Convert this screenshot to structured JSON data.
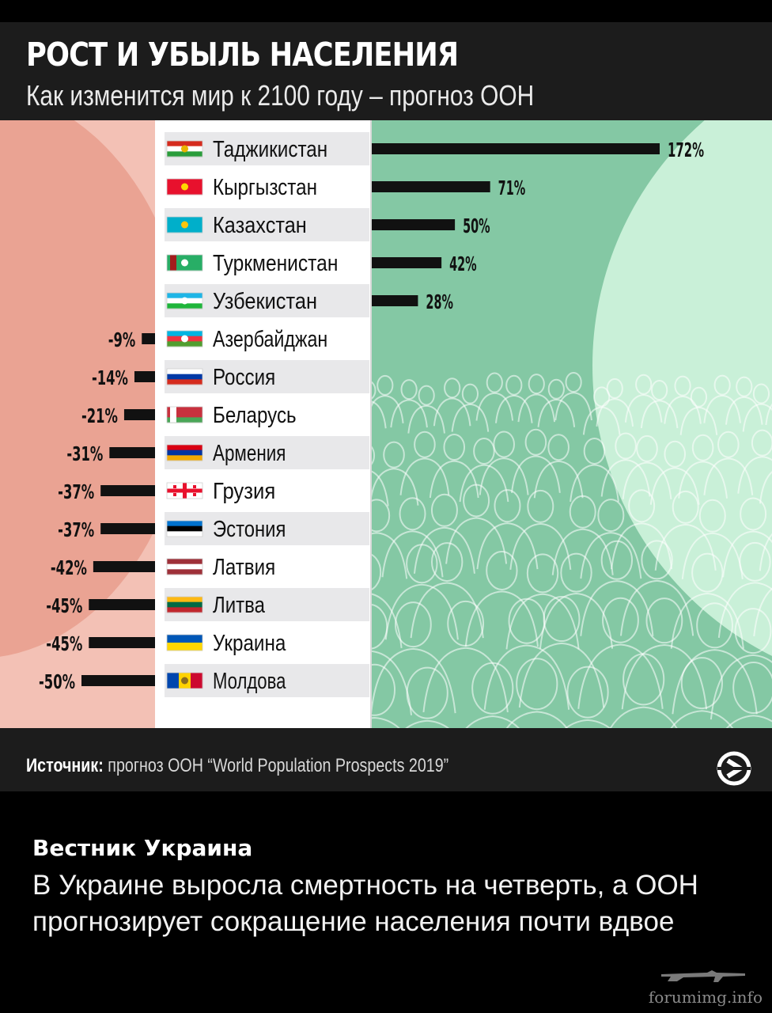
{
  "title": "РОСТ И УБЫЛЬ НАСЕЛЕНИЯ",
  "subtitle": "Как изменится мир к 2100 году – прогноз ООН",
  "source": {
    "label": "Источник:",
    "text": " прогноз ООН “World Population Prospects 2019”"
  },
  "brand_logo_icon": "chevron-circle-logo-icon",
  "news": {
    "source_name": "Вестник Украина",
    "headline": "В Украине выросла смертность на четверть, а ООН прогнозирует сокращение населения почти вдвое"
  },
  "watermark": "forumimg.info",
  "colors": {
    "bar": "#111111",
    "row_odd": "#e8e8ea",
    "row_even": "#ffffff",
    "growth_bg": "#c9f0d8",
    "decline_bg": "#f3c1b5"
  },
  "chart_data": {
    "type": "bar",
    "orientation": "horizontal-diverging",
    "unit": "%",
    "series": [
      {
        "values": [
          172,
          71,
          50,
          42,
          28,
          -9,
          -14,
          -21,
          -31,
          -37,
          -37,
          -42,
          -45,
          -45,
          -50
        ]
      }
    ],
    "categories": [
      "Таджикистан",
      "Кыргызстан",
      "Казахстан",
      "Туркменистан",
      "Узбекистан",
      "Азербайджан",
      "Россия",
      "Беларусь",
      "Армения",
      "Грузия",
      "Эстония",
      "Латвия",
      "Литва",
      "Украина",
      "Молдова"
    ],
    "labels": [
      "172%",
      "71%",
      "50%",
      "42%",
      "28%",
      "-9%",
      "-14%",
      "-21%",
      "-31%",
      "-37%",
      "-37%",
      "-42%",
      "-45%",
      "-45%",
      "-50%"
    ],
    "flags": [
      {
        "stripes": [
          "#d52b1e",
          "#ffffff",
          "#2a9d3b"
        ],
        "emblem": "#e8b400"
      },
      {
        "stripes": [
          "#e8112d"
        ],
        "emblem": "#ffd700"
      },
      {
        "stripes": [
          "#00afca"
        ],
        "emblem": "#fec50c"
      },
      {
        "stripes": [
          "#28ae66"
        ],
        "emblem": "#ffffff",
        "hoist": "#a31d1d"
      },
      {
        "stripes": [
          "#1eb5e6",
          "#ffffff",
          "#1eb53a"
        ],
        "emblem": "#ffffff"
      },
      {
        "stripes": [
          "#00b5e2",
          "#ef3340",
          "#509e2f"
        ],
        "emblem": "#ffffff"
      },
      {
        "stripes": [
          "#ffffff",
          "#0039a6",
          "#d52b1e"
        ]
      },
      {
        "stripes": [
          "#c8313e",
          "#c8313e",
          "#4aa657"
        ],
        "hoist": "#ffffff"
      },
      {
        "stripes": [
          "#d90012",
          "#0033a0",
          "#f2a800"
        ]
      },
      {
        "stripes": [
          "#ffffff"
        ],
        "cross": "#e8112d"
      },
      {
        "stripes": [
          "#0072ce",
          "#000000",
          "#ffffff"
        ]
      },
      {
        "stripes": [
          "#9e3039",
          "#ffffff",
          "#9e3039"
        ]
      },
      {
        "stripes": [
          "#fdb913",
          "#006a44",
          "#c1272d"
        ]
      },
      {
        "stripes": [
          "#0057b7",
          "#ffd700"
        ]
      },
      {
        "vertical": [
          "#0046ae",
          "#ffd200",
          "#cc092f"
        ],
        "emblem": "#8a6b1f"
      }
    ]
  }
}
